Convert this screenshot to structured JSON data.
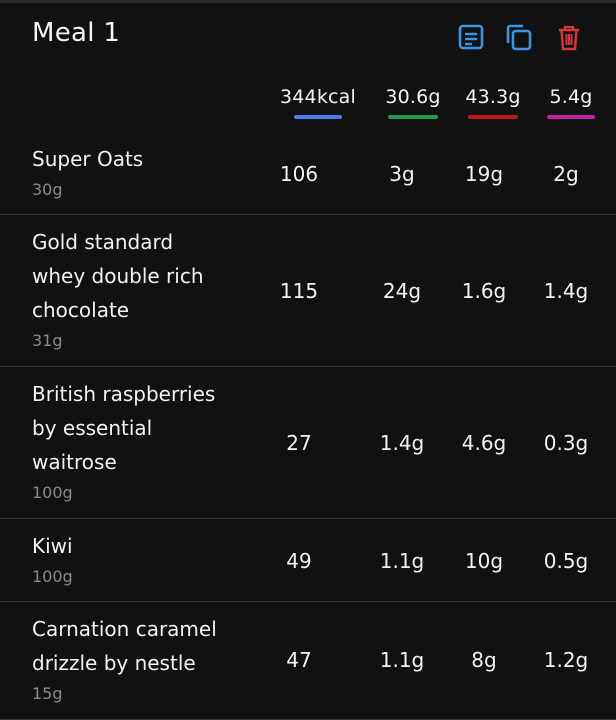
{
  "meal": {
    "title": "Meal 1",
    "icons": [
      "notes-icon",
      "copy-icon",
      "delete-icon"
    ]
  },
  "totals": {
    "kcal": "344kcal",
    "protein": "30.6g",
    "carbs": "43.3g",
    "fat": "5.4g",
    "colors": {
      "kcal": "#4a7de8",
      "protein": "#1e9a52",
      "carbs": "#c0161c",
      "fat": "#c11fa8"
    }
  },
  "foods": [
    {
      "name": "Super Oats",
      "amount": "30g",
      "kcal": "106",
      "protein": "3g",
      "carbs": "19g",
      "fat": "2g"
    },
    {
      "name": "Gold standard whey double rich chocolate",
      "amount": "31g",
      "kcal": "115",
      "protein": "24g",
      "carbs": "1.6g",
      "fat": "1.4g"
    },
    {
      "name": "British raspberries by essential waitrose",
      "amount": "100g",
      "kcal": "27",
      "protein": "1.4g",
      "carbs": "4.6g",
      "fat": "0.3g"
    },
    {
      "name": "Kiwi",
      "amount": "100g",
      "kcal": "49",
      "protein": "1.1g",
      "carbs": "10g",
      "fat": "0.5g"
    },
    {
      "name": "Carnation caramel drizzle by nestle",
      "amount": "15g",
      "kcal": "47",
      "protein": "1.1g",
      "carbs": "8g",
      "fat": "1.2g"
    }
  ]
}
